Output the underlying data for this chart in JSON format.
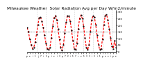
{
  "title": "Milwaukee Weather  Solar Radiation Avg per Day W/m2/minute",
  "title_fontsize": 4.2,
  "background_color": "#ffffff",
  "plot_bg_color": "#ffffff",
  "grid_color": "#aaaaaa",
  "line_color_red": "#ff0000",
  "line_color_black": "#000000",
  "ylim": [
    -10,
    310
  ],
  "xlim": [
    0,
    66
  ],
  "ytick_values": [
    0,
    50,
    100,
    150,
    200,
    250,
    300
  ],
  "ytick_labels": [
    "0",
    "50",
    "100",
    "150",
    "200",
    "250",
    "300"
  ],
  "vline_positions": [
    7,
    14,
    21,
    28,
    35,
    42,
    49,
    56,
    63
  ],
  "data_x": [
    0,
    1,
    2,
    3,
    4,
    5,
    6,
    7,
    8,
    9,
    10,
    11,
    12,
    13,
    14,
    15,
    16,
    17,
    18,
    19,
    20,
    21,
    22,
    23,
    24,
    25,
    26,
    27,
    28,
    29,
    30,
    31,
    32,
    33,
    34,
    35,
    36,
    37,
    38,
    39,
    40,
    41,
    42,
    43,
    44,
    45,
    46,
    47,
    48,
    49,
    50,
    51,
    52,
    53,
    54,
    55,
    56,
    57,
    58,
    59,
    60,
    61,
    62,
    63,
    64,
    65,
    66
  ],
  "data_y": [
    180,
    150,
    90,
    50,
    20,
    30,
    70,
    130,
    200,
    255,
    260,
    230,
    180,
    120,
    60,
    20,
    10,
    30,
    100,
    190,
    255,
    270,
    240,
    170,
    90,
    30,
    5,
    50,
    140,
    220,
    270,
    270,
    230,
    160,
    80,
    20,
    10,
    60,
    170,
    250,
    275,
    250,
    190,
    100,
    30,
    10,
    50,
    150,
    240,
    270,
    260,
    200,
    120,
    50,
    10,
    20,
    90,
    200,
    270,
    280,
    240,
    170,
    100,
    40,
    20,
    80,
    30
  ],
  "ref_y_value": 150,
  "xtick_positions": [
    0,
    2,
    4,
    6,
    8,
    10,
    12,
    14,
    16,
    18,
    20,
    22,
    24,
    26,
    28,
    30,
    32,
    34,
    36,
    38,
    40,
    42,
    44,
    46,
    48,
    50,
    52,
    54,
    56,
    58,
    60,
    62,
    64,
    66
  ],
  "xtick_labels": [
    "p",
    "e",
    "i",
    "1",
    "j",
    "7",
    "i",
    "5",
    "p",
    "i",
    "e",
    "i",
    "3",
    "p",
    "7",
    "2",
    "i",
    "5",
    "7",
    "r",
    "e",
    "5",
    "3",
    "3",
    "i",
    "3",
    "i",
    "1",
    "p",
    "e",
    "e",
    "i",
    "p",
    "e"
  ]
}
